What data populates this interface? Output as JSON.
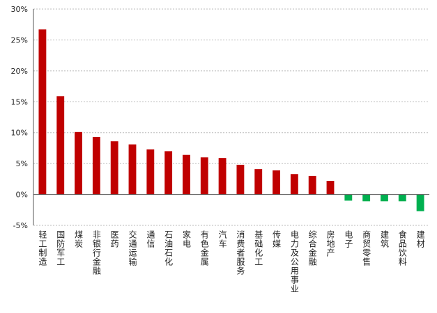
{
  "chart_data": {
    "type": "bar",
    "categories": [
      "轻工制造",
      "国防军工",
      "煤炭",
      "非银行金融",
      "医药",
      "交通运输",
      "通信",
      "石油石化",
      "家电",
      "有色金属",
      "汽车",
      "消费者服务",
      "基础化工",
      "传媒",
      "电力及公用事业",
      "综合金融",
      "房地产",
      "电子",
      "商贸零售",
      "建筑",
      "食品饮料",
      "建材"
    ],
    "values": [
      26.7,
      15.9,
      10.1,
      9.3,
      8.6,
      8.1,
      7.3,
      7.0,
      6.4,
      6.0,
      5.9,
      4.8,
      4.1,
      3.9,
      3.3,
      3.0,
      2.2,
      -1.0,
      -1.1,
      -1.1,
      -1.1,
      -2.7
    ],
    "ylim": [
      -5,
      30
    ],
    "yticks": [
      -5,
      0,
      5,
      10,
      15,
      20,
      25,
      30
    ],
    "ytick_labels": [
      "-5%",
      "0%",
      "5%",
      "10%",
      "15%",
      "20%",
      "25%",
      "30%"
    ],
    "grid": true,
    "colors": {
      "positive": "#c00000",
      "negative": "#00b050"
    }
  }
}
